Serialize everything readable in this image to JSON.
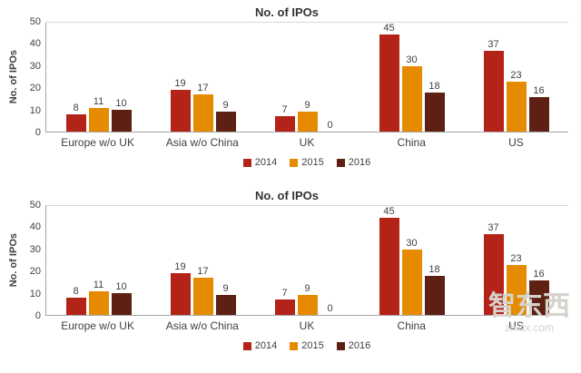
{
  "watermark": {
    "line1": "智东西",
    "line2": "zhidx.com"
  },
  "chart_data": [
    {
      "type": "bar",
      "title": "No. of IPOs",
      "ylabel": "No. of IPOs",
      "xlabel": "",
      "ylim": [
        0,
        50
      ],
      "ymax": 50,
      "yticks": [
        0,
        10,
        20,
        30,
        40,
        50
      ],
      "grid": false,
      "legend_position": "bottom",
      "categories": [
        "Europe w/o UK",
        "Asia w/o China",
        "UK",
        "China",
        "US"
      ],
      "series": [
        {
          "name": "2014",
          "color": "#b42318",
          "values": [
            8,
            19,
            7,
            45,
            37
          ]
        },
        {
          "name": "2015",
          "color": "#e68a00",
          "values": [
            11,
            17,
            9,
            30,
            23
          ]
        },
        {
          "name": "2016",
          "color": "#5e2012",
          "values": [
            10,
            9,
            0,
            18,
            16
          ]
        }
      ]
    },
    {
      "type": "bar",
      "title": "No. of IPOs",
      "ylabel": "No. of IPOs",
      "xlabel": "",
      "ylim": [
        0,
        50
      ],
      "ymax": 50,
      "yticks": [
        0,
        10,
        20,
        30,
        40,
        50
      ],
      "grid": false,
      "legend_position": "bottom",
      "categories": [
        "Europe w/o UK",
        "Asia w/o China",
        "UK",
        "China",
        "US"
      ],
      "series": [
        {
          "name": "2014",
          "color": "#b42318",
          "values": [
            8,
            19,
            7,
            45,
            37
          ]
        },
        {
          "name": "2015",
          "color": "#e68a00",
          "values": [
            11,
            17,
            9,
            30,
            23
          ]
        },
        {
          "name": "2016",
          "color": "#5e2012",
          "values": [
            10,
            9,
            0,
            18,
            16
          ]
        }
      ]
    }
  ]
}
